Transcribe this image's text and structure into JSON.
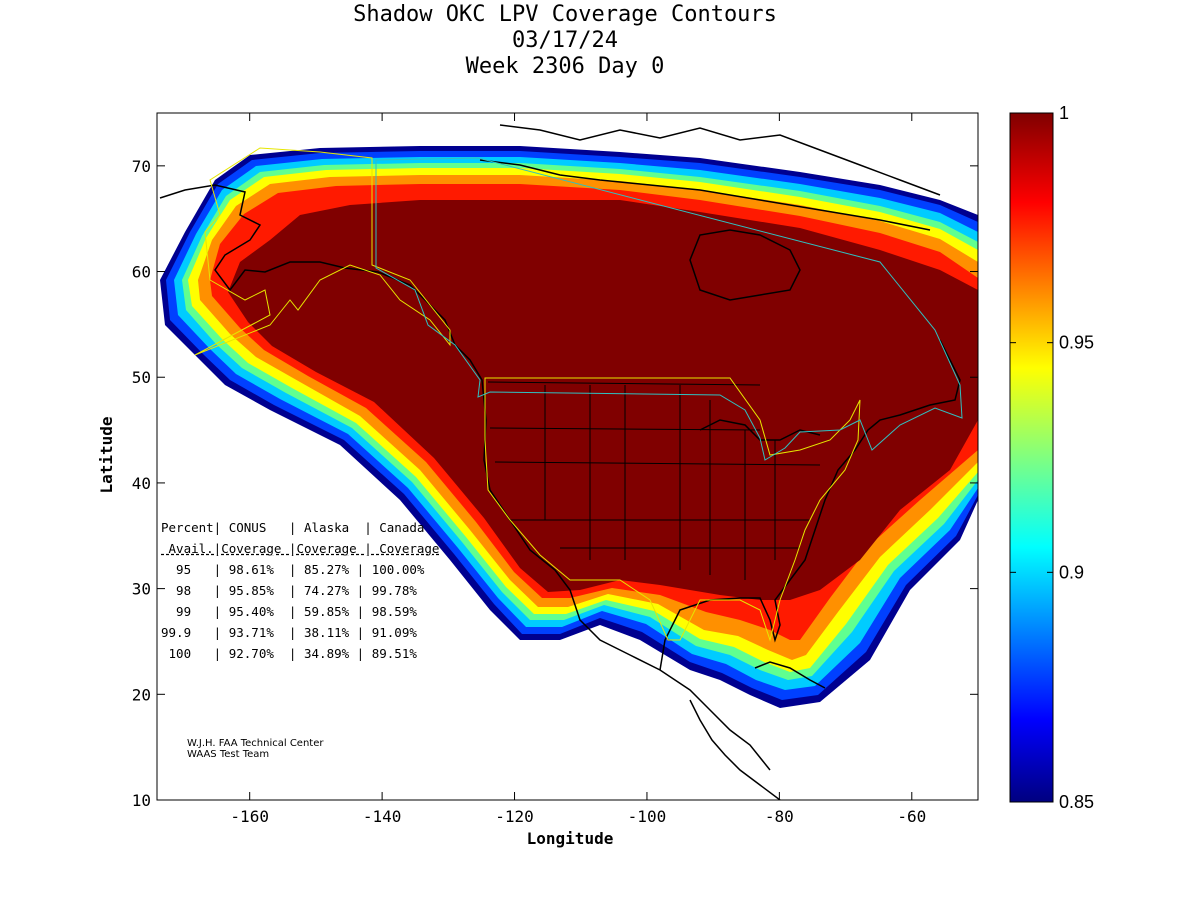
{
  "title": {
    "line1": "Shadow OKC LPV Coverage Contours",
    "line2": "03/17/24",
    "line3": "Week 2306 Day 0"
  },
  "axes": {
    "xlabel": "Longitude",
    "ylabel": "Latitude",
    "xticks": [
      "-160",
      "-140",
      "-120",
      "-100",
      "-80",
      "-60"
    ],
    "yticks": [
      "70",
      "60",
      "50",
      "40",
      "30",
      "20",
      "10"
    ],
    "xlim": [
      -174,
      -50
    ],
    "ylim": [
      10,
      75
    ]
  },
  "colorbar": {
    "labels": [
      "1",
      "0.95",
      "0.9",
      "0.85"
    ],
    "range": [
      0.85,
      1.0
    ],
    "colormap": "jet"
  },
  "table": {
    "header1": "Percent| CONUS   | Alaska  | Canada",
    "header2": " Avail.|Coverage |Coverage | Coverage",
    "rows": [
      "  95   | 98.61%  | 85.27% | 100.00%",
      "  98   | 95.85%  | 74.27% | 99.78%",
      "  99   | 95.40%  | 59.85% | 98.59%",
      "99.9   | 93.71%  | 38.11% | 91.09%",
      " 100   | 92.70%  | 34.89% | 89.51%"
    ]
  },
  "credit": {
    "line1": "W.J.H. FAA Technical Center",
    "line2": "WAAS Test Team"
  },
  "colors": {
    "dark_red": "#800000",
    "red": "#e01000",
    "orange": "#ff8000",
    "yellow": "#ffff00",
    "cyan": "#00e0ff",
    "blue": "#0040ff",
    "navy": "#000090",
    "boundary_yellow": "#e6e600",
    "boundary_cyan": "#30c0c0"
  }
}
